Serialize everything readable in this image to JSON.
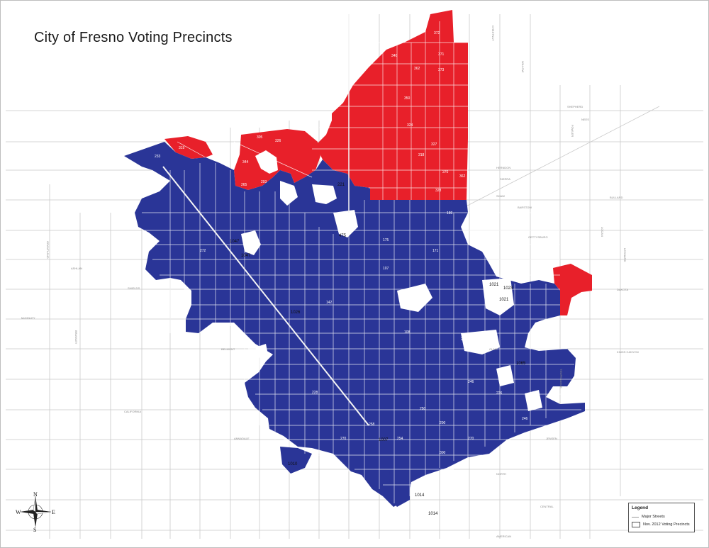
{
  "title": "City of Fresno Voting Precincts",
  "colors": {
    "republican_red": "#e8202a",
    "democrat_blue": "#2a3597",
    "street_gray": "#c9c9c9",
    "background": "#ffffff"
  },
  "streets": {
    "north_south": [
      "GRANTLAND",
      "BRAWLEY",
      "MARKS",
      "WEST",
      "PALM",
      "BLACKSTONE",
      "FIRST",
      "CEDAR",
      "MAPLE",
      "CHESTNUT",
      "WILLOW",
      "MINNEWAWA",
      "CLOVIS",
      "FOWLER",
      "TEMPERANCE",
      "LOCAN",
      "DEWOLF",
      "LEONARD",
      "DICKENSON"
    ],
    "east_west": [
      "SHEPHERD",
      "NEES",
      "HERNDON",
      "SIERRA",
      "BULLARD",
      "SHAW",
      "BARSTOW",
      "GETTYSBURG",
      "ASHLAN",
      "SHIELDS",
      "DAKOTA",
      "McKINLEY",
      "OLIVE",
      "BELMONT",
      "KINGS CANYON",
      "CALIFORNIA",
      "JENSEN",
      "NORTH",
      "CENTRAL",
      "AMERICAN",
      "ANNADALE"
    ],
    "diagonal": [
      "HWY 99",
      "HWY 168"
    ]
  },
  "area_labels": [
    "1047",
    "1047",
    "1023",
    "1021",
    "1021",
    "1026",
    "1010",
    "1007",
    "1014",
    "1014",
    "1065",
    "221",
    "475"
  ],
  "precinct_labels_sample": [
    "372",
    "371",
    "340",
    "362",
    "373",
    "318",
    "350",
    "324",
    "327",
    "370",
    "328",
    "362",
    "319",
    "326",
    "305",
    "233",
    "344",
    "265",
    "293",
    "272",
    "175",
    "186",
    "171",
    "107",
    "142",
    "108",
    "246",
    "250",
    "200",
    "270",
    "254",
    "240",
    "226",
    "300",
    "228",
    "258",
    "270",
    "246"
  ],
  "legend": {
    "title": "Legend",
    "items": [
      {
        "label": "Major Streets",
        "symbol": "line"
      },
      {
        "label": "Nov. 2012 Voting Precincts",
        "symbol": "box"
      }
    ]
  },
  "compass": {
    "n": "N",
    "s": "S",
    "e": "E",
    "w": "W"
  }
}
